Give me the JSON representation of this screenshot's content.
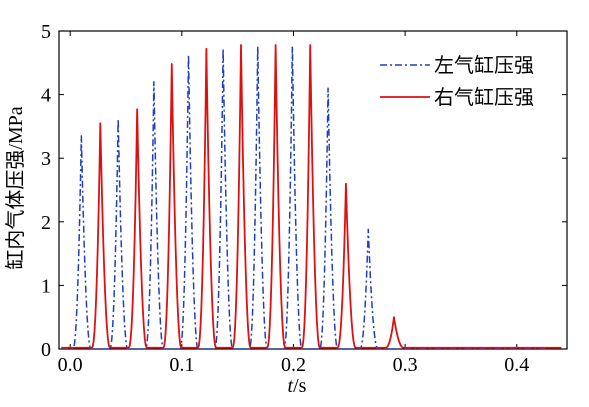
{
  "chart_data": {
    "type": "line",
    "title": "",
    "xlabel": {
      "italic": "t",
      "rest": "/s"
    },
    "ylabel": "缸内气体压强/MPa",
    "xlim": [
      -0.01,
      0.445
    ],
    "ylim": [
      0,
      5
    ],
    "x_ticks": [
      "0.0",
      "0.1",
      "0.2",
      "0.3",
      "0.4"
    ],
    "x_tick_values": [
      0.0,
      0.1,
      0.2,
      0.3,
      0.4
    ],
    "y_ticks": [
      "0",
      "1",
      "2",
      "3",
      "4",
      "5"
    ],
    "y_tick_values": [
      0,
      1,
      2,
      3,
      4,
      5
    ],
    "grid": false,
    "legend_position": "top-right",
    "series": [
      {
        "name": "左气缸压强",
        "color": "#1f3fbf",
        "style": "dashdot",
        "peaks": [
          {
            "t": 0.01,
            "p": 3.35
          },
          {
            "t": 0.043,
            "p": 3.62
          },
          {
            "t": 0.075,
            "p": 4.2
          },
          {
            "t": 0.106,
            "p": 4.62
          },
          {
            "t": 0.137,
            "p": 4.72
          },
          {
            "t": 0.168,
            "p": 4.76
          },
          {
            "t": 0.199,
            "p": 4.76
          },
          {
            "t": 0.231,
            "p": 4.1
          },
          {
            "t": 0.267,
            "p": 1.88
          }
        ],
        "baseline": 0.0
      },
      {
        "name": "右气缸压强",
        "color": "#dd1111",
        "style": "solid",
        "peaks": [
          {
            "t": 0.027,
            "p": 3.55
          },
          {
            "t": 0.06,
            "p": 3.77
          },
          {
            "t": 0.091,
            "p": 4.48
          },
          {
            "t": 0.122,
            "p": 4.72
          },
          {
            "t": 0.153,
            "p": 4.78
          },
          {
            "t": 0.184,
            "p": 4.78
          },
          {
            "t": 0.215,
            "p": 4.78
          },
          {
            "t": 0.247,
            "p": 2.6
          },
          {
            "t": 0.29,
            "p": 0.5
          }
        ],
        "baseline": 0.02
      }
    ]
  }
}
